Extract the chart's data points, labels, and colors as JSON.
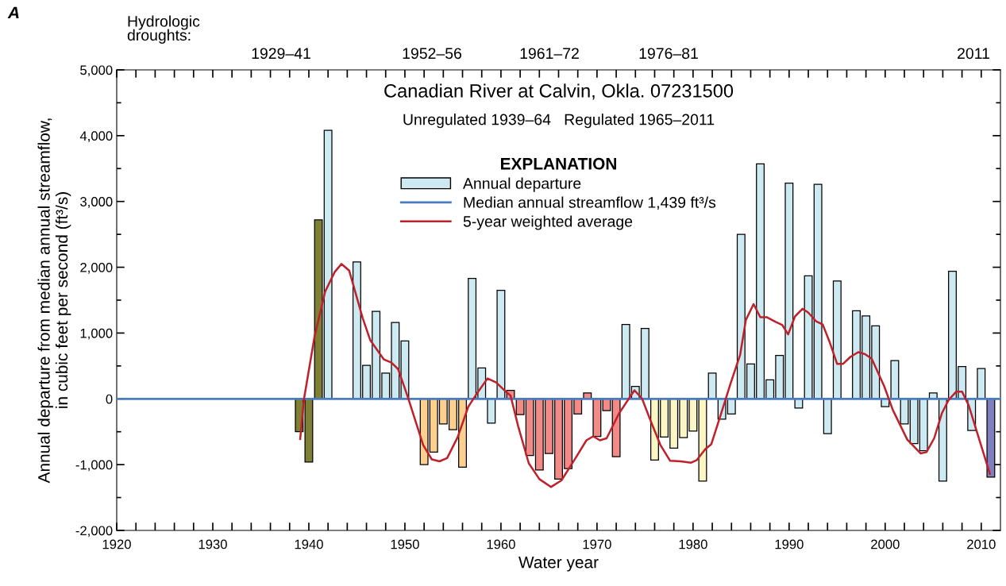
{
  "chart_data": {
    "type": "bar",
    "title": "Canadian River at Calvin, Okla. 07231500",
    "subtitle": "Unregulated 1939–64   Regulated 1965–2011",
    "xlabel": "Water year",
    "ylabel": "Annual departure from median annual streamflow,\nin cubic feet per second (ft³/s)",
    "legend_title": "EXPLANATION",
    "annotations": [
      "A",
      "Hydrologic\ndroughts:",
      "1929–41",
      "1952–56",
      "1961–72",
      "1976–81",
      "2011"
    ],
    "series": [
      {
        "name": "Annual departure",
        "color": "#cdeaf2",
        "x": [
          1939,
          1940,
          1941,
          1942,
          1945,
          1946,
          1947,
          1948,
          1949,
          1950,
          1952,
          1953,
          1954,
          1955,
          1956,
          1957,
          1958,
          1959,
          1960,
          1961,
          1962,
          1963,
          1964,
          1965,
          1966,
          1967,
          1968,
          1969,
          1970,
          1971,
          1972,
          1973,
          1974,
          1975,
          1976,
          1977,
          1978,
          1979,
          1980,
          1981,
          1982,
          1983,
          1984,
          1985,
          1986,
          1987,
          1988,
          1989,
          1990,
          1991,
          1992,
          1993,
          1994,
          1995,
          1997,
          1998,
          1999,
          2000,
          2001,
          2002,
          2003,
          2004,
          2005,
          2006,
          2007,
          2008,
          2009,
          2010,
          2011
        ],
        "values": [
          -500,
          -960,
          2720,
          4080,
          2080,
          510,
          1330,
          390,
          1160,
          880,
          -1000,
          -810,
          -380,
          -470,
          -1040,
          1830,
          470,
          -370,
          1650,
          130,
          -240,
          -860,
          -1080,
          -830,
          -1220,
          -1060,
          -230,
          90,
          -570,
          -180,
          -880,
          1130,
          190,
          1070,
          -930,
          -580,
          -750,
          -590,
          -490,
          -1250,
          390,
          -310,
          -230,
          2500,
          530,
          3570,
          290,
          660,
          3280,
          -140,
          1870,
          3260,
          -530,
          1790,
          1340,
          1260,
          1110,
          -120,
          580,
          -380,
          -680,
          -790,
          90,
          -1250,
          1940,
          490,
          -480,
          460,
          -1190
        ],
        "colors": [
          "#808034",
          "#808034",
          "#808034",
          "#cdeaf2",
          "#cdeaf2",
          "#cdeaf2",
          "#cdeaf2",
          "#cdeaf2",
          "#cdeaf2",
          "#cdeaf2",
          "#fdd08f",
          "#fdd08f",
          "#fdd08f",
          "#fdd08f",
          "#fdd08f",
          "#cdeaf2",
          "#cdeaf2",
          "#cdeaf2",
          "#cdeaf2",
          "#f28b87",
          "#f28b87",
          "#f28b87",
          "#f28b87",
          "#f28b87",
          "#f28b87",
          "#f28b87",
          "#f28b87",
          "#f28b87",
          "#f28b87",
          "#f28b87",
          "#f28b87",
          "#cdeaf2",
          "#cdeaf2",
          "#cdeaf2",
          "#fbf6c4",
          "#fbf6c4",
          "#fbf6c4",
          "#fbf6c4",
          "#fbf6c4",
          "#fbf6c4",
          "#cdeaf2",
          "#cdeaf2",
          "#cdeaf2",
          "#cdeaf2",
          "#cdeaf2",
          "#cdeaf2",
          "#cdeaf2",
          "#cdeaf2",
          "#cdeaf2",
          "#cdeaf2",
          "#cdeaf2",
          "#cdeaf2",
          "#cdeaf2",
          "#cdeaf2",
          "#cdeaf2",
          "#cdeaf2",
          "#cdeaf2",
          "#cdeaf2",
          "#cdeaf2",
          "#cdeaf2",
          "#cdeaf2",
          "#cdeaf2",
          "#cdeaf2",
          "#cdeaf2",
          "#cdeaf2",
          "#cdeaf2",
          "#cdeaf2",
          "#cdeaf2",
          "#7f7fbf"
        ]
      },
      {
        "name": "5-year weighted average",
        "type": "line",
        "color": "#c0202a",
        "x": [
          1939.1,
          1939.5,
          1940.6,
          1941.7,
          1942.7,
          1943.4,
          1944.2,
          1945.6,
          1946.4,
          1947.8,
          1948.6,
          1949.3,
          1950.3,
          1951.9,
          1952.8,
          1953.6,
          1954.4,
          1955.5,
          1956.6,
          1957.4,
          1958.6,
          1959.5,
          1960.5,
          1961.0,
          1961.8,
          1962.9,
          1964.0,
          1965.2,
          1966.3,
          1967.6,
          1968.9,
          1969.6,
          1970.3,
          1971.0,
          1972.3,
          1973.9,
          1974.7,
          1975.6,
          1976.6,
          1977.6,
          1978.7,
          1979.8,
          1980.4,
          1981.3,
          1981.9,
          1982.8,
          1983.9,
          1984.9,
          1985.5,
          1986.3,
          1987.0,
          1987.7,
          1988.6,
          1989.3,
          1989.9,
          1990.6,
          1991.4,
          1992.0,
          1992.8,
          1993.5,
          1994.2,
          1995.0,
          1995.6,
          1996.4,
          1997.2,
          1997.9,
          1998.6,
          1999.9,
          2000.8,
          2002.3,
          2003.7,
          2004.3,
          2005.1,
          2005.9,
          2006.6,
          2007.4,
          2008.0,
          2008.7,
          2010.9
        ],
        "values": [
          -610,
          0,
          950,
          1630,
          1930,
          2050,
          1950,
          1230,
          890,
          600,
          550,
          450,
          30,
          -700,
          -920,
          -950,
          -900,
          -580,
          -120,
          60,
          310,
          250,
          110,
          50,
          -420,
          -980,
          -1220,
          -1340,
          -1240,
          -940,
          -630,
          -570,
          -630,
          -600,
          -220,
          130,
          0,
          -340,
          -700,
          -940,
          -950,
          -970,
          -930,
          -760,
          -690,
          -280,
          230,
          670,
          1200,
          1440,
          1240,
          1240,
          1170,
          1120,
          980,
          1250,
          1370,
          1310,
          1180,
          1130,
          870,
          530,
          530,
          640,
          710,
          680,
          610,
          190,
          -170,
          -620,
          -830,
          -810,
          -600,
          -220,
          -20,
          110,
          110,
          -100,
          -1140
        ]
      }
    ],
    "ref_lines": [
      {
        "axis": "y",
        "value": 0,
        "label": "Median annual streamflow 1,439 ft³/s",
        "color": "#4a7cc4",
        "line_style": "solid"
      }
    ],
    "xlim": [
      1920,
      2012
    ],
    "ylim": [
      -2000,
      5000
    ],
    "xticks": [
      1920,
      {
        "value": 1922,
        "label": null
      },
      {
        "value": 1924,
        "label": null
      },
      {
        "value": 1926,
        "label": null
      },
      {
        "value": 1928,
        "label": null
      },
      1930,
      {
        "value": 1932,
        "label": null
      },
      {
        "value": 1934,
        "label": null
      },
      {
        "value": 1936,
        "label": null
      },
      {
        "value": 1938,
        "label": null
      },
      1940,
      {
        "value": 1942,
        "label": null
      },
      {
        "value": 1944,
        "label": null
      },
      {
        "value": 1946,
        "label": null
      },
      {
        "value": 1948,
        "label": null
      },
      1950,
      {
        "value": 1952,
        "label": null
      },
      {
        "value": 1954,
        "label": null
      },
      {
        "value": 1956,
        "label": null
      },
      {
        "value": 1958,
        "label": null
      },
      1960,
      {
        "value": 1962,
        "label": null
      },
      {
        "value": 1964,
        "label": null
      },
      {
        "value": 1966,
        "label": null
      },
      {
        "value": 1968,
        "label": null
      },
      1970,
      {
        "value": 1972,
        "label": null
      },
      {
        "value": 1974,
        "label": null
      },
      {
        "value": 1976,
        "label": null
      },
      {
        "value": 1978,
        "label": null
      },
      1980,
      {
        "value": 1982,
        "label": null
      },
      {
        "value": 1984,
        "label": null
      },
      {
        "value": 1986,
        "label": null
      },
      {
        "value": 1988,
        "label": null
      },
      1990,
      {
        "value": 1992,
        "label": null
      },
      {
        "value": 1994,
        "label": null
      },
      {
        "value": 1996,
        "label": null
      },
      {
        "value": 1998,
        "label": null
      },
      2000,
      {
        "value": 2002,
        "label": null
      },
      {
        "value": 2004,
        "label": null
      },
      {
        "value": 2006,
        "label": null
      },
      {
        "value": 2008,
        "label": null
      },
      2010
    ],
    "yticks": [
      {
        "value": -2000,
        "label": "-2,000"
      },
      {
        "value": -1500,
        "label": null
      },
      {
        "value": -1000,
        "label": "-1,000"
      },
      {
        "value": -500,
        "label": null
      },
      0,
      {
        "value": 500,
        "label": null
      },
      {
        "value": 1000,
        "label": "1,000"
      },
      {
        "value": 1500,
        "label": null
      },
      {
        "value": 2000,
        "label": "2,000"
      },
      {
        "value": 2500,
        "label": null
      },
      {
        "value": 3000,
        "label": "3,000"
      },
      {
        "value": 3500,
        "label": null
      },
      {
        "value": 4000,
        "label": "4,000"
      },
      {
        "value": 4500,
        "label": null
      },
      {
        "value": 5000,
        "label": "5,000"
      }
    ],
    "grid": false,
    "legend": "top"
  }
}
